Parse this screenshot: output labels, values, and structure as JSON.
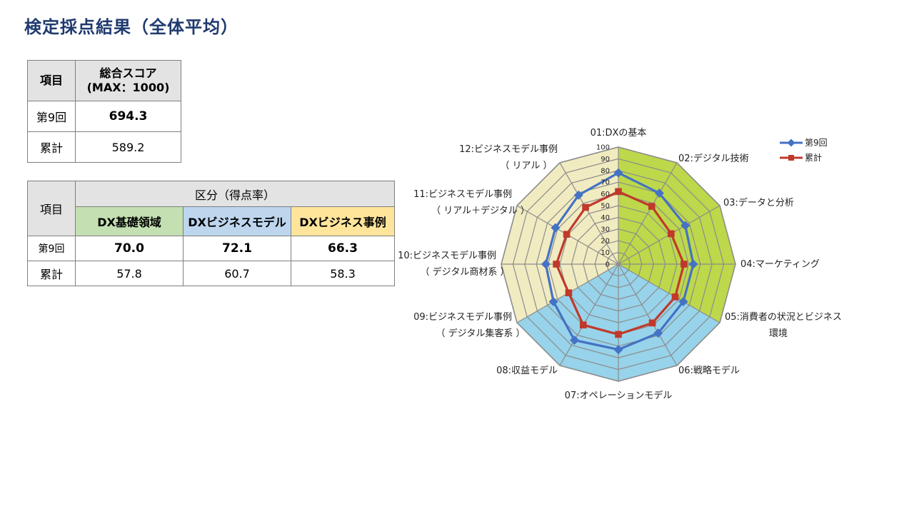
{
  "title": "検定採点結果（全体平均）",
  "score_table": {
    "header_item": "項目",
    "header_score_line1": "総合スコア",
    "header_score_line2": "(MAX：1000)",
    "rows": [
      {
        "label": "第9回",
        "value": "694.3"
      },
      {
        "label": "累計",
        "value": "589.2"
      }
    ]
  },
  "category_table": {
    "header_item": "項目",
    "header_group": "区分（得点率）",
    "columns": [
      "DX基礎領域",
      "DXビジネスモデル",
      "DXビジネス事例"
    ],
    "column_colors": [
      "#c4dfb2",
      "#bdd6ee",
      "#ffe59b"
    ],
    "rows": [
      {
        "label": "第9回",
        "values": [
          "70.0",
          "72.1",
          "66.3"
        ]
      },
      {
        "label": "累計",
        "values": [
          "57.8",
          "60.7",
          "58.3"
        ]
      }
    ]
  },
  "chart_data": {
    "type": "radar",
    "categories": [
      "01:DXの基本",
      "02:デジタル技術",
      "03:データと分析",
      "04:マーケティング",
      "05:消費者の状況とビジネス環境",
      "06:戦略モデル",
      "07:オペレーションモデル",
      "08:収益モデル",
      "09:ビジネスモデル事例（デジタル集客系）",
      "10:ビジネスモデル事例（デジタル商材系）",
      "11:ビジネスモデル事例（リアル＋デジタル）",
      "12:ビジネスモデル事例（リアル）"
    ],
    "category_label_lines": [
      [
        "01:DXの基本"
      ],
      [
        "02:デジタル技術"
      ],
      [
        "03:データと分析"
      ],
      [
        "04:マーケティング"
      ],
      [
        "05:消費者の状況とビジネス",
        "環境"
      ],
      [
        "06:戦略モデル"
      ],
      [
        "07:オペレーションモデル"
      ],
      [
        "08:収益モデル"
      ],
      [
        "09:ビジネスモデル事例",
        "（ デジタル集客系 ）"
      ],
      [
        "10:ビジネスモデル事例",
        "（ デジタル商材系 ）"
      ],
      [
        "11:ビジネスモデル事例",
        "（ リアル＋デジタル ）"
      ],
      [
        "12:ビジネスモデル事例",
        "（ リアル ）"
      ]
    ],
    "series": [
      {
        "name": "第9回",
        "values": [
          78,
          70,
          66,
          64,
          64,
          68,
          73,
          75,
          64,
          62,
          62,
          68
        ],
        "color": "#4472c4",
        "marker": "diamond"
      },
      {
        "name": "累計",
        "values": [
          62,
          57,
          52,
          56,
          56,
          58,
          60,
          60,
          49,
          53,
          51,
          56
        ],
        "color": "#c0392b",
        "marker": "square"
      }
    ],
    "rlim": [
      0,
      100
    ],
    "ticks": [
      0,
      10,
      20,
      30,
      40,
      50,
      60,
      70,
      80,
      90,
      100
    ],
    "background_sectors": [
      {
        "categories": [
          "01:DXの基本",
          "02:デジタル技術",
          "03:データと分析",
          "04:マーケティング",
          "05:消費者の状況とビジネス環境"
        ],
        "color": "#bdd84a"
      },
      {
        "categories": [
          "05:消費者の状況とビジネス環境",
          "06:戦略モデル",
          "07:オペレーションモデル",
          "08:収益モデル",
          "09:ビジネスモデル事例（デジタル集客系）"
        ],
        "color": "#97d3ea"
      },
      {
        "categories": [
          "09:ビジネスモデル事例（デジタル集客系）",
          "10:ビジネスモデル事例（デジタル商材系）",
          "11:ビジネスモデル事例（リアル＋デジタル）",
          "12:ビジネスモデル事例（リアル）",
          "01:DXの基本"
        ],
        "color": "#f1ebc1"
      }
    ],
    "legend_position": "top-right",
    "grid": true
  }
}
